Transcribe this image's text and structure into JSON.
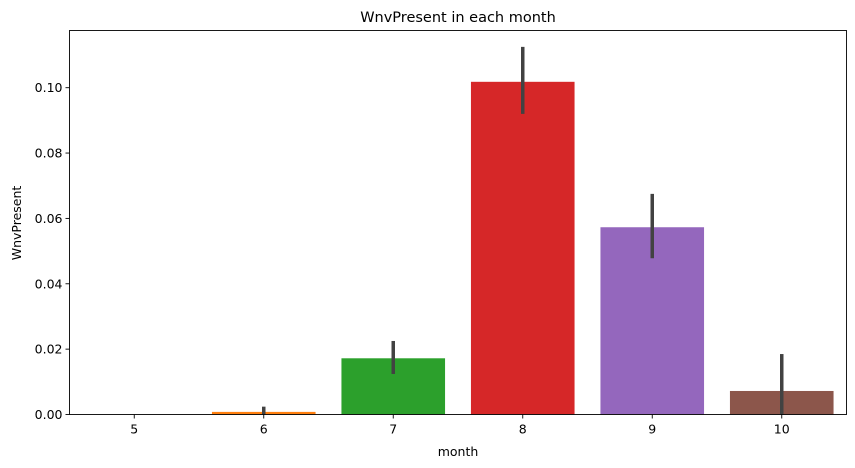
{
  "chart_data": {
    "type": "bar",
    "title": "WnvPresent in each month",
    "xlabel": "month",
    "ylabel": "WnvPresent",
    "categories": [
      "5",
      "6",
      "7",
      "8",
      "9",
      "10"
    ],
    "values": [
      0.0,
      0.0008,
      0.0172,
      0.1018,
      0.0573,
      0.0072
    ],
    "error_low": [
      0.0,
      0.0,
      0.0124,
      0.092,
      0.0478,
      0.0
    ],
    "error_high": [
      0.0,
      0.0024,
      0.0225,
      0.1125,
      0.0675,
      0.0185
    ],
    "colors": [
      "#1f77b4",
      "#ff7f0e",
      "#2ca02c",
      "#d62728",
      "#9467bd",
      "#8c564b"
    ],
    "yticks": [
      "0.00",
      "0.02",
      "0.04",
      "0.06",
      "0.08",
      "0.10"
    ],
    "ylim": [
      0,
      0.1175
    ],
    "grid": false,
    "legend": "none"
  }
}
